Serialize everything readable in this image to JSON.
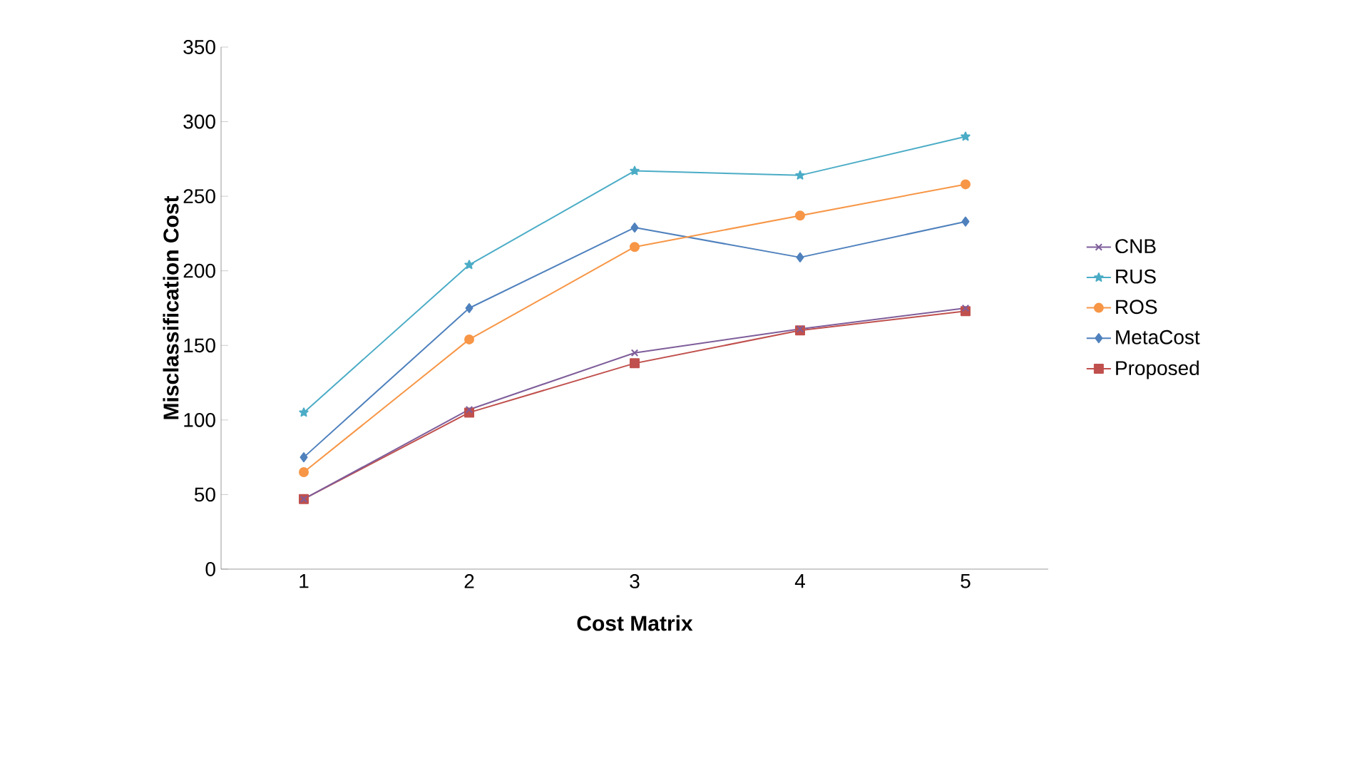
{
  "chart_data": {
    "type": "line",
    "xlabel": "Cost Matrix",
    "ylabel": "Misclassification Cost",
    "categories": [
      "1",
      "2",
      "3",
      "4",
      "5"
    ],
    "ylim": [
      0,
      350
    ],
    "yticks": [
      0,
      50,
      100,
      150,
      200,
      250,
      300,
      350
    ],
    "grid": false,
    "legend": "right",
    "series": [
      {
        "name": "CNB",
        "color": "#7e5d9a",
        "marker": "cross",
        "values": [
          47,
          107,
          145,
          161,
          175
        ]
      },
      {
        "name": "RUS",
        "color": "#4bacc6",
        "marker": "star",
        "values": [
          105,
          204,
          267,
          264,
          290
        ]
      },
      {
        "name": "ROS",
        "color": "#f79646",
        "marker": "circle",
        "values": [
          65,
          154,
          216,
          237,
          258
        ]
      },
      {
        "name": "MetaCost",
        "color": "#4f81bd",
        "marker": "diamond",
        "values": [
          75,
          175,
          229,
          209,
          233
        ]
      },
      {
        "name": "Proposed",
        "color": "#c0504d",
        "marker": "square",
        "values": [
          47,
          105,
          138,
          160,
          173
        ]
      }
    ]
  }
}
